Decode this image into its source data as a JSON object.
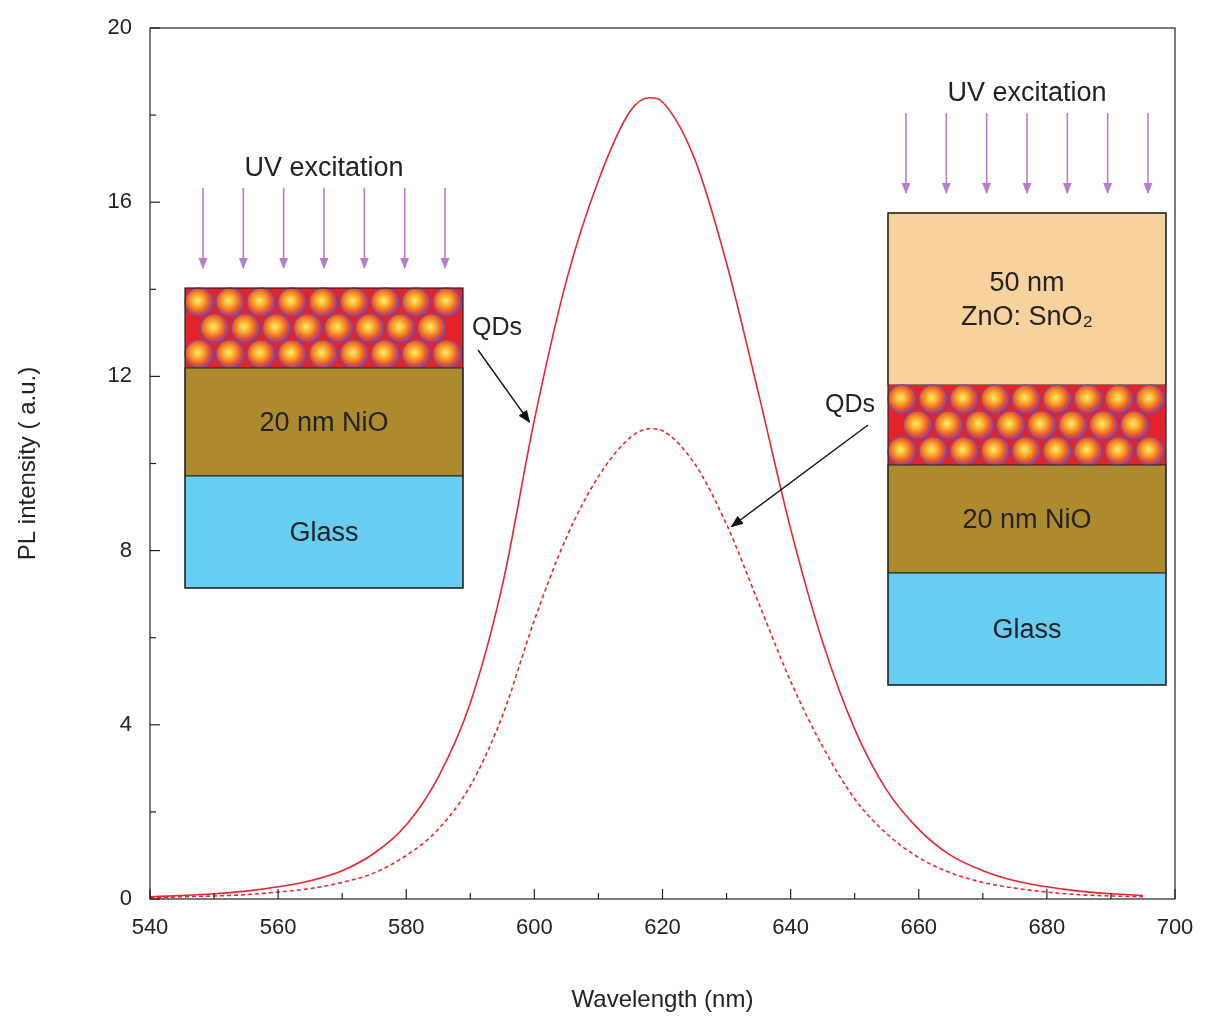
{
  "chart_data": {
    "type": "line",
    "x_label": "Wavelength (nm)",
    "y_label": "PL intensity ( a.u.)",
    "x": [
      540,
      545,
      550,
      555,
      560,
      565,
      570,
      575,
      580,
      585,
      590,
      595,
      600,
      605,
      610,
      615,
      618,
      620,
      625,
      630,
      635,
      640,
      645,
      650,
      655,
      660,
      665,
      670,
      675,
      680,
      685,
      690,
      695
    ],
    "series": [
      {
        "color": "#e8262d",
        "line_style": "solid",
        "values": [
          0.05,
          0.08,
          0.12,
          0.18,
          0.28,
          0.42,
          0.65,
          1.05,
          1.7,
          2.8,
          4.5,
          7.2,
          11.0,
          14.2,
          16.5,
          18.1,
          18.4,
          18.3,
          17.0,
          14.6,
          11.6,
          8.5,
          5.9,
          3.9,
          2.5,
          1.6,
          1.0,
          0.65,
          0.42,
          0.28,
          0.18,
          0.12,
          0.08
        ]
      },
      {
        "color": "#e8262d",
        "line_style": "dashed",
        "values": [
          0.03,
          0.05,
          0.07,
          0.1,
          0.16,
          0.24,
          0.38,
          0.6,
          1.0,
          1.6,
          2.6,
          4.2,
          6.4,
          8.3,
          9.7,
          10.6,
          10.8,
          10.75,
          10.0,
          8.6,
          6.8,
          5.0,
          3.5,
          2.3,
          1.5,
          0.95,
          0.6,
          0.38,
          0.25,
          0.16,
          0.1,
          0.07,
          0.05
        ]
      }
    ],
    "xlim": [
      540,
      700
    ],
    "xticks": [
      540,
      560,
      580,
      600,
      620,
      640,
      660,
      680,
      700
    ],
    "ylim": [
      0,
      20
    ],
    "yticks": [
      0,
      4,
      8,
      12,
      16,
      20
    ],
    "grid": false,
    "insets": [
      {
        "excitation": "UV excitation",
        "label": "QDs",
        "layers": [
          "20 nm NiO",
          "Glass"
        ]
      },
      {
        "excitation": "UV excitation",
        "label": "QDs",
        "top": [
          "50 nm",
          "ZnO: SnO₂"
        ],
        "layers": [
          "20 nm NiO",
          "Glass"
        ]
      }
    ]
  }
}
